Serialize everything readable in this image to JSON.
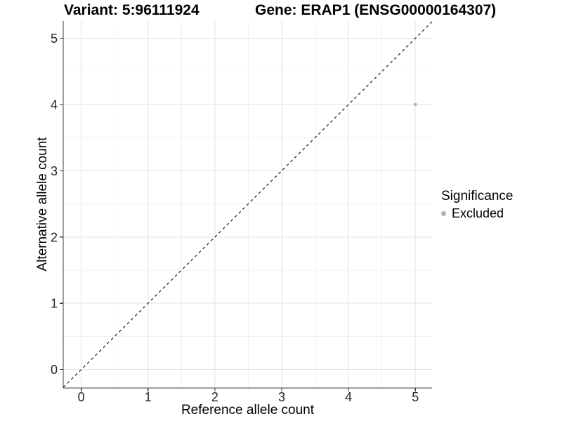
{
  "chart_data": {
    "type": "scatter",
    "titles": {
      "variant": "Variant: 5:96111924",
      "gene": "Gene: ERAP1 (ENSG00000164307)"
    },
    "xlabel": "Reference allele count",
    "ylabel": "Alternative allele count",
    "xlim": [
      -0.27,
      5.25
    ],
    "ylim": [
      -0.28,
      5.26
    ],
    "x_ticks": [
      0,
      1,
      2,
      3,
      4,
      5
    ],
    "y_ticks": [
      0,
      1,
      2,
      3,
      4,
      5
    ],
    "x_minor_ticks": [
      0.5,
      1.5,
      2.5,
      3.5,
      4.5
    ],
    "y_minor_ticks": [
      0.5,
      1.5,
      2.5,
      3.5,
      4.5
    ],
    "grid": "major+minor",
    "reference_line": {
      "kind": "identity",
      "style": "dashed",
      "color": "#1a1a1a"
    },
    "points": [
      {
        "x": 5,
        "y": 4,
        "significance": "Excluded"
      }
    ],
    "legend": {
      "title": "Significance",
      "position": "right",
      "items": [
        {
          "label": "Excluded",
          "color": "#b3b3b3"
        }
      ]
    },
    "colors": {
      "point": "#b3b3b3",
      "grid_major": "#e3e3e3",
      "grid_minor": "#f0f0f0",
      "axis": "#3d3d3d",
      "tick_text": "#262626",
      "background": "#ffffff"
    }
  }
}
